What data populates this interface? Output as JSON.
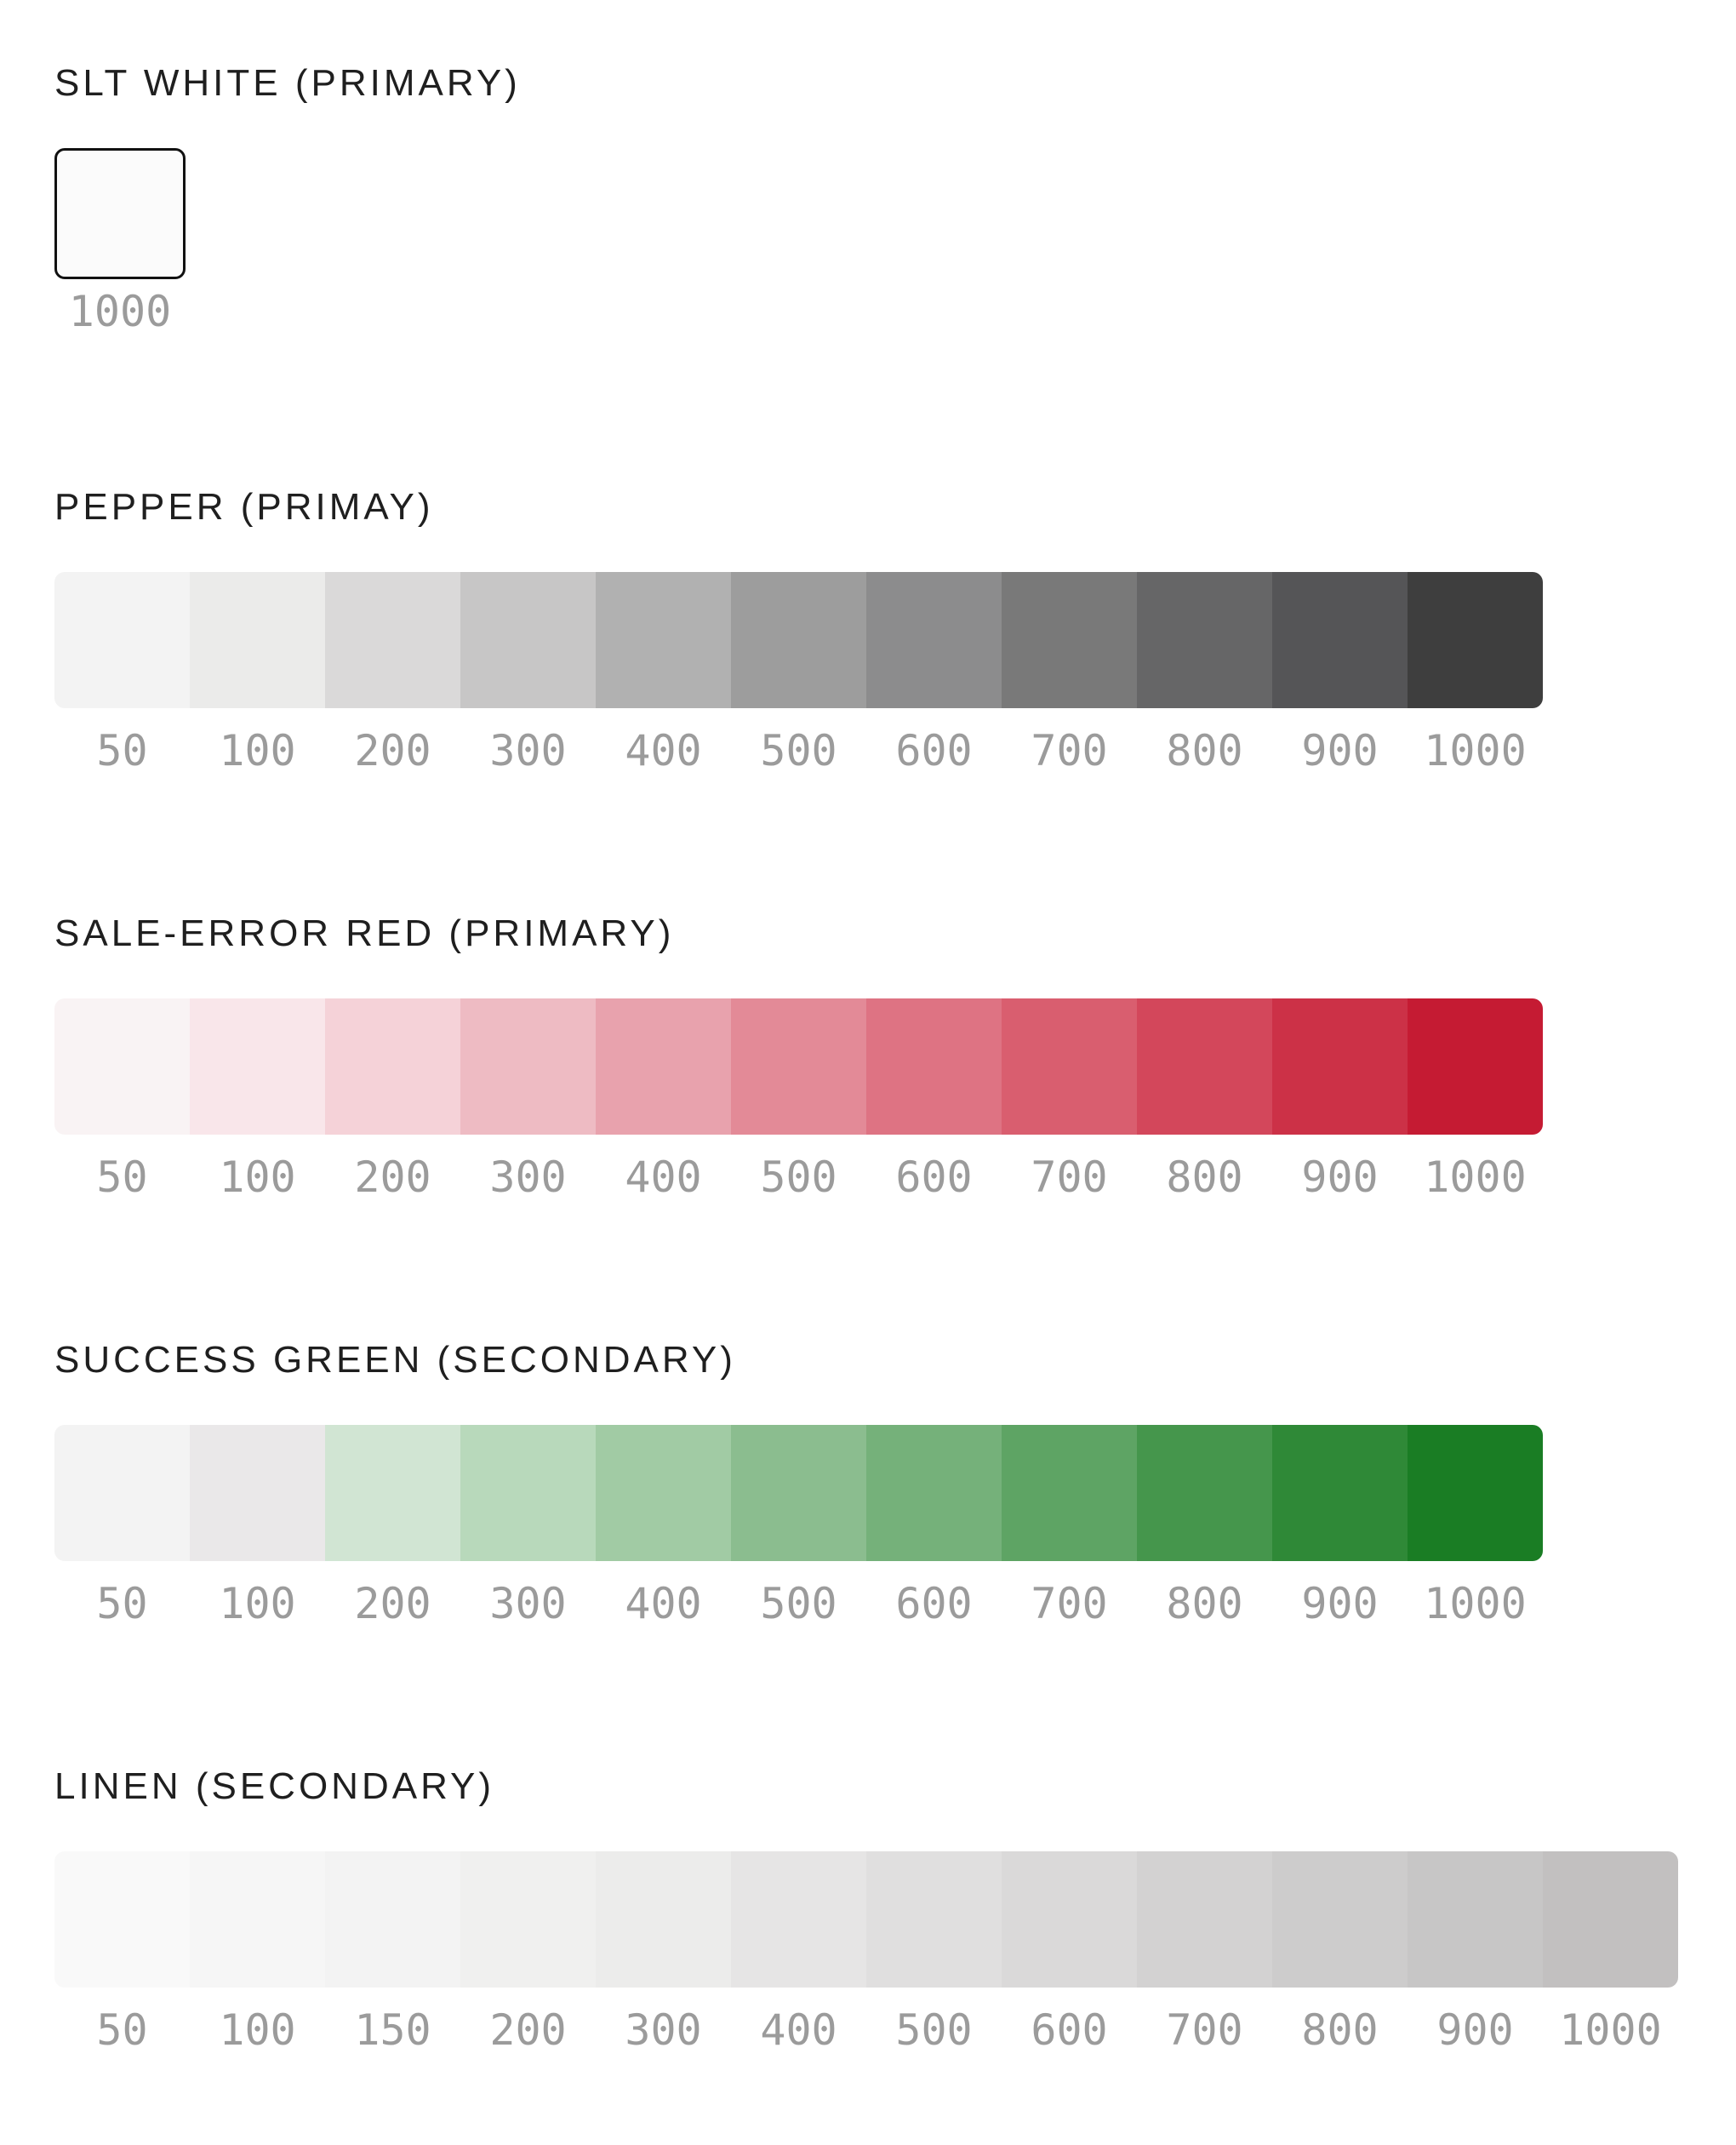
{
  "palettes": [
    {
      "title": "SLT WHITE (PRIMARY)",
      "swatches": [
        {
          "label": "1000",
          "color": "#fbfbfb"
        }
      ]
    },
    {
      "title": "PEPPER (PRIMAY)",
      "swatches": [
        {
          "label": "50",
          "color": "#f3f3f3"
        },
        {
          "label": "100",
          "color": "#ebebea"
        },
        {
          "label": "200",
          "color": "#dad9d9"
        },
        {
          "label": "300",
          "color": "#c7c6c6"
        },
        {
          "label": "400",
          "color": "#b1b1b1"
        },
        {
          "label": "500",
          "color": "#9d9d9d"
        },
        {
          "label": "600",
          "color": "#8c8c8d"
        },
        {
          "label": "700",
          "color": "#797979"
        },
        {
          "label": "800",
          "color": "#666667"
        },
        {
          "label": "900",
          "color": "#555557"
        },
        {
          "label": "1000",
          "color": "#3e3e3e"
        }
      ]
    },
    {
      "title": "SALE-ERROR RED (PRIMARY)",
      "swatches": [
        {
          "label": "50",
          "color": "#f9f3f4"
        },
        {
          "label": "100",
          "color": "#f9e6ea"
        },
        {
          "label": "200",
          "color": "#f5d2d8"
        },
        {
          "label": "300",
          "color": "#eebbc3"
        },
        {
          "label": "400",
          "color": "#e8a2ad"
        },
        {
          "label": "500",
          "color": "#e38a97"
        },
        {
          "label": "600",
          "color": "#de7383"
        },
        {
          "label": "700",
          "color": "#d95e6f"
        },
        {
          "label": "800",
          "color": "#d3475b"
        },
        {
          "label": "900",
          "color": "#cc3147"
        },
        {
          "label": "1000",
          "color": "#c51b33"
        }
      ]
    },
    {
      "title": "SUCCESS GREEN (SECONDARY)",
      "swatches": [
        {
          "label": "50",
          "color": "#f3f3f3"
        },
        {
          "label": "100",
          "color": "#eae8e9"
        },
        {
          "label": "200",
          "color": "#d1e5d3"
        },
        {
          "label": "300",
          "color": "#b8d9bb"
        },
        {
          "label": "400",
          "color": "#a1cba4"
        },
        {
          "label": "500",
          "color": "#8bbd8f"
        },
        {
          "label": "600",
          "color": "#75b17a"
        },
        {
          "label": "700",
          "color": "#5ea464"
        },
        {
          "label": "800",
          "color": "#45964c"
        },
        {
          "label": "900",
          "color": "#2f8937"
        },
        {
          "label": "1000",
          "color": "#1a7d24"
        }
      ]
    },
    {
      "title": "LINEN (SECONDARY)",
      "swatches": [
        {
          "label": "50",
          "color": "#f9f9f9"
        },
        {
          "label": "100",
          "color": "#f6f6f6"
        },
        {
          "label": "150",
          "color": "#f3f3f3"
        },
        {
          "label": "200",
          "color": "#f0f0ef"
        },
        {
          "label": "300",
          "color": "#ececeb"
        },
        {
          "label": "400",
          "color": "#e6e5e5"
        },
        {
          "label": "500",
          "color": "#e0dfdf"
        },
        {
          "label": "600",
          "color": "#dad9d9"
        },
        {
          "label": "700",
          "color": "#d3d2d2"
        },
        {
          "label": "800",
          "color": "#cdcccc"
        },
        {
          "label": "900",
          "color": "#c7c6c6"
        },
        {
          "label": "1000",
          "color": "#c2c0c0"
        }
      ]
    }
  ]
}
